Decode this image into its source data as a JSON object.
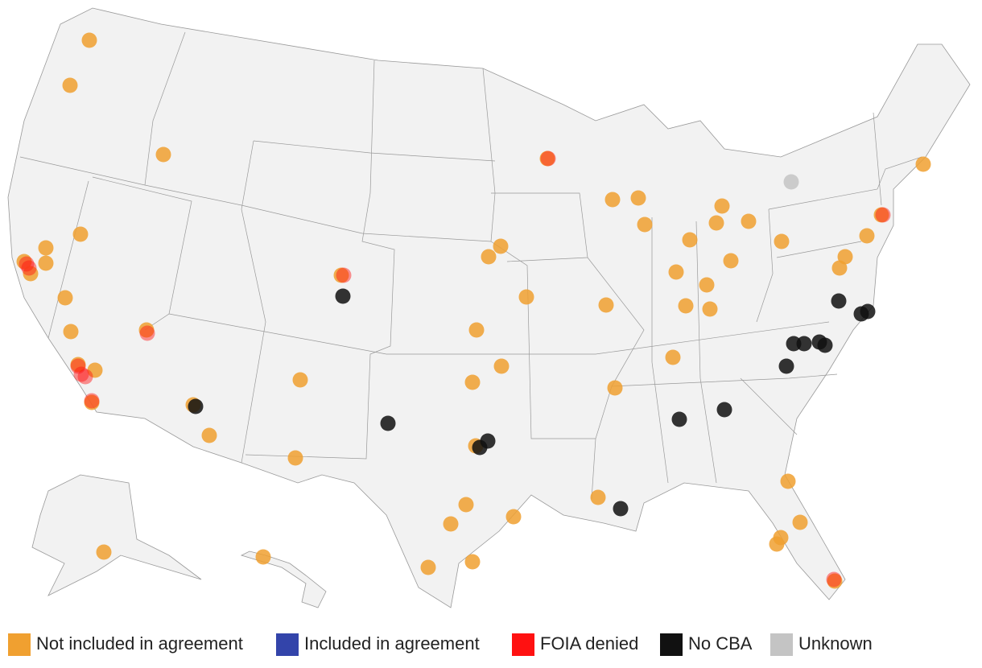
{
  "legend": {
    "items": [
      {
        "name": "Not included in agreement",
        "color": "#f0a030"
      },
      {
        "name": "Included in agreement",
        "color": "#3344aa"
      },
      {
        "name": "FOIA denied",
        "color": "#ff1111"
      },
      {
        "name": "No CBA",
        "color": "#111111"
      },
      {
        "name": "Unknown",
        "color": "#c4c4c4"
      }
    ]
  }
}
